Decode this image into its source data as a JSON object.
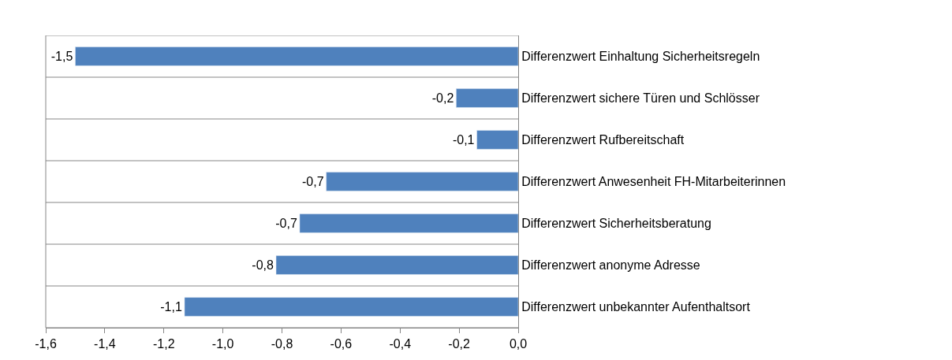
{
  "chart_data": {
    "type": "bar",
    "orientation": "horizontal",
    "categories": [
      "Differenzwert Einhaltung Sicherheitsregeln",
      "Differenzwert sichere Türen und Schlösser",
      "Differenzwert Rufbereitschaft",
      "Differenzwert Anwesenheit FH-Mitarbeiterinnen",
      "Differenzwert Sicherheitsberatung",
      "Differenzwert anonyme Adresse",
      "Differenzwert unbekannter Aufenthaltsort"
    ],
    "values": [
      -1.5,
      -0.21,
      -0.14,
      -0.65,
      -0.74,
      -0.82,
      -1.13
    ],
    "value_labels": [
      "-1,5",
      "-0,2",
      "-0,1",
      "-0,7",
      "-0,7",
      "-0,8",
      "-1,1"
    ],
    "color": "#4f81bd",
    "xlim": [
      -1.6,
      0.0
    ],
    "xticks": [
      {
        "value": -1.6,
        "label": "-1,6"
      },
      {
        "value": -1.4,
        "label": "-1,4"
      },
      {
        "value": -1.2,
        "label": "-1,2"
      },
      {
        "value": -1.0,
        "label": "-1,0"
      },
      {
        "value": -0.8,
        "label": "-0,8"
      },
      {
        "value": -0.6,
        "label": "-0,6"
      },
      {
        "value": -0.4,
        "label": "-0,4"
      },
      {
        "value": -0.2,
        "label": "-0,2"
      },
      {
        "value": 0.0,
        "label": "0,0"
      }
    ],
    "grid": "y"
  }
}
